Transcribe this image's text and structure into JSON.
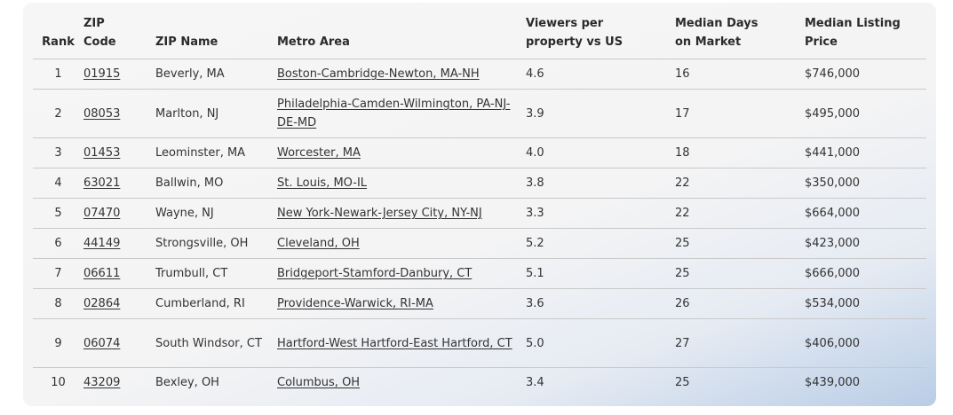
{
  "table": {
    "headers": {
      "rank": "Rank",
      "zip_code": "ZIP Code",
      "zip_name": "ZIP Name",
      "metro_area": "Metro Area",
      "viewers": "Viewers per property vs US",
      "days": "Median Days on Market",
      "price": "Median Listing Price"
    },
    "rows": [
      {
        "rank": "1",
        "zip": "01915",
        "name": "Beverly, MA",
        "metro": "Boston-Cambridge-Newton, MA-NH",
        "viewers": "4.6",
        "days": "16",
        "price": "$746,000"
      },
      {
        "rank": "2",
        "zip": "08053",
        "name": "Marlton, NJ",
        "metro": "Philadelphia-Camden-Wilmington, PA-NJ-DE-MD",
        "viewers": "3.9",
        "days": "17",
        "price": "$495,000"
      },
      {
        "rank": "3",
        "zip": "01453",
        "name": "Leominster, MA",
        "metro": "Worcester, MA",
        "viewers": "4.0",
        "days": "18",
        "price": "$441,000"
      },
      {
        "rank": "4",
        "zip": "63021",
        "name": "Ballwin, MO",
        "metro": "St. Louis, MO-IL",
        "viewers": "3.8",
        "days": "22",
        "price": "$350,000"
      },
      {
        "rank": "5",
        "zip": "07470",
        "name": "Wayne, NJ",
        "metro": "New York-Newark-Jersey City, NY-NJ",
        "viewers": "3.3",
        "days": "22",
        "price": "$664,000"
      },
      {
        "rank": "6",
        "zip": "44149",
        "name": "Strongsville, OH",
        "metro": "Cleveland, OH",
        "viewers": "5.2",
        "days": "25",
        "price": "$423,000"
      },
      {
        "rank": "7",
        "zip": "06611",
        "name": "Trumbull, CT",
        "metro": "Bridgeport-Stamford-Danbury, CT",
        "viewers": "5.1",
        "days": "25",
        "price": "$666,000"
      },
      {
        "rank": "8",
        "zip": "02864",
        "name": "Cumberland, RI",
        "metro": "Providence-Warwick, RI-MA",
        "viewers": "3.6",
        "days": "26",
        "price": "$534,000"
      },
      {
        "rank": "9",
        "zip": "06074",
        "name": "South Windsor, CT",
        "metro": "Hartford-West Hartford-East Hartford, CT",
        "viewers": "5.0",
        "days": "27",
        "price": "$406,000"
      },
      {
        "rank": "10",
        "zip": "43209",
        "name": "Bexley, OH",
        "metro": "Columbus, OH",
        "viewers": "3.4",
        "days": "25",
        "price": "$439,000"
      }
    ]
  }
}
